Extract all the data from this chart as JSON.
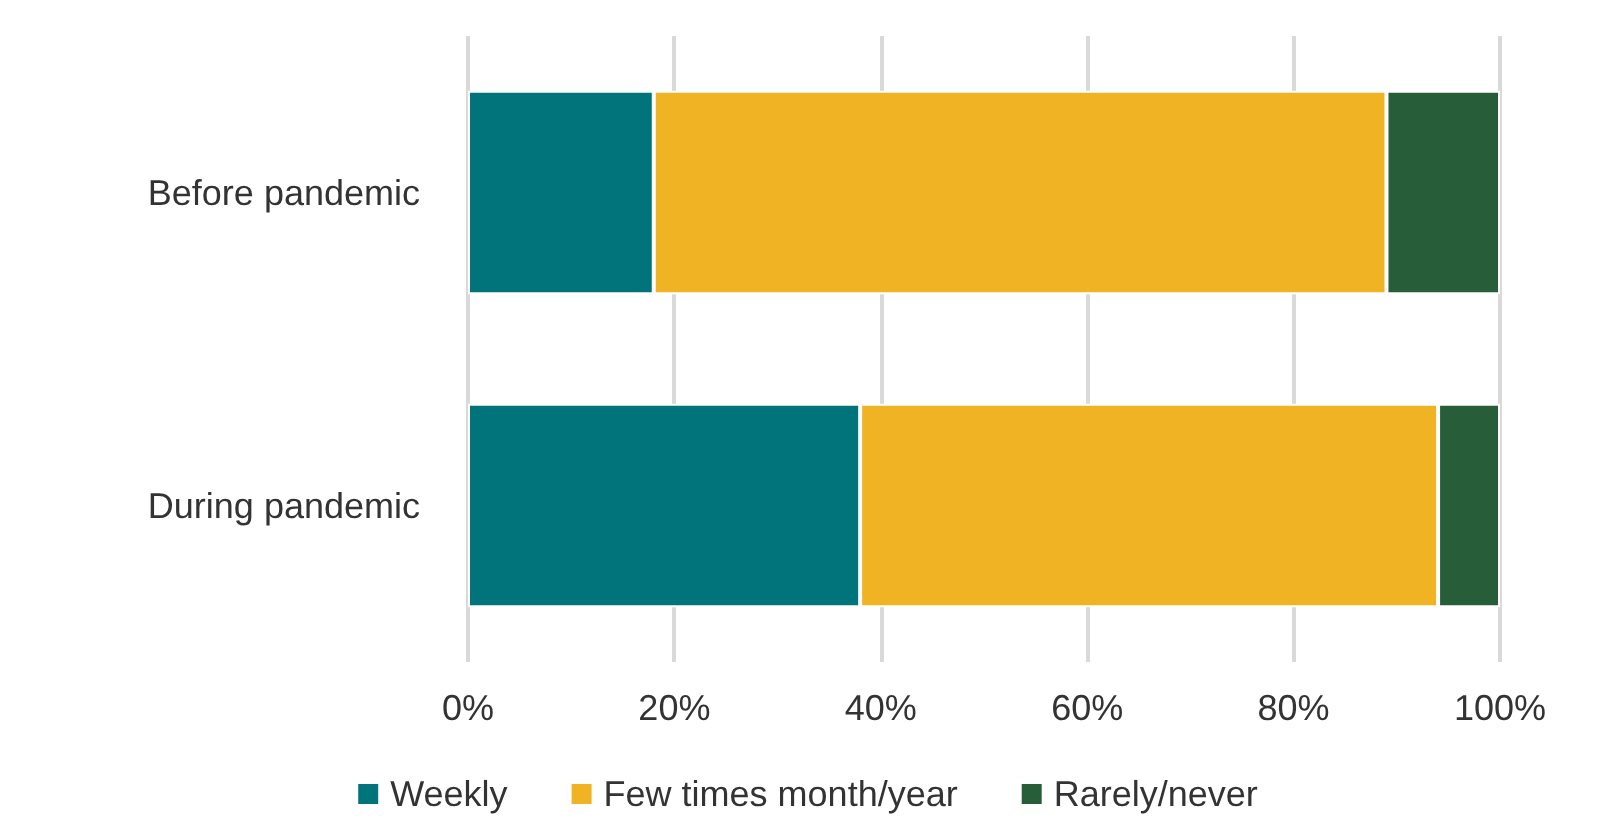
{
  "chart_data": {
    "type": "bar",
    "orientation": "horizontal",
    "stacked": true,
    "categories": [
      "Before pandemic",
      "During pandemic"
    ],
    "series": [
      {
        "name": "Weekly",
        "color": "#00747a",
        "values": [
          18,
          38
        ]
      },
      {
        "name": "Few times month/year",
        "color": "#f0b323",
        "values": [
          71,
          56
        ]
      },
      {
        "name": "Rarely/never",
        "color": "#275d38",
        "values": [
          11,
          6
        ]
      }
    ],
    "xlim": [
      0,
      100
    ],
    "xticks": [
      {
        "value": 0,
        "label": "0%"
      },
      {
        "value": 20,
        "label": "20%"
      },
      {
        "value": 40,
        "label": "40%"
      },
      {
        "value": 60,
        "label": "60%"
      },
      {
        "value": 80,
        "label": "80%"
      },
      {
        "value": 100,
        "label": "100%"
      }
    ],
    "grid": "x",
    "legend": "bottom"
  }
}
